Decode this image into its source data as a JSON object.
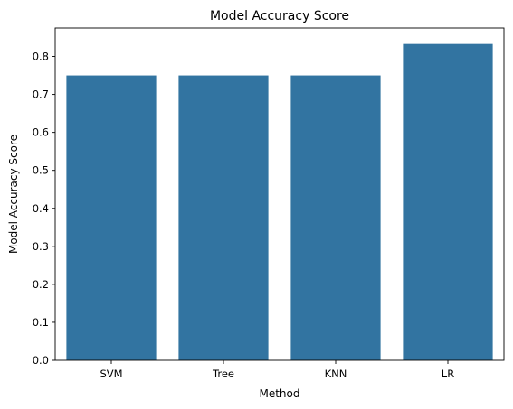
{
  "chart_data": {
    "type": "bar",
    "title": "Model Accuracy Score",
    "xlabel": "Method",
    "ylabel": "Model Accuracy Score",
    "categories": [
      "SVM",
      "Tree",
      "KNN",
      "LR"
    ],
    "values": [
      0.75,
      0.75,
      0.75,
      0.833
    ],
    "ylim": [
      0,
      0.875
    ],
    "yticks": [
      0.0,
      0.1,
      0.2,
      0.3,
      0.4,
      0.5,
      0.6,
      0.7,
      0.8
    ],
    "ytick_labels": [
      "0.0",
      "0.1",
      "0.2",
      "0.3",
      "0.4",
      "0.5",
      "0.6",
      "0.7",
      "0.8"
    ],
    "grid": false,
    "bar_color": "#3274a1"
  }
}
